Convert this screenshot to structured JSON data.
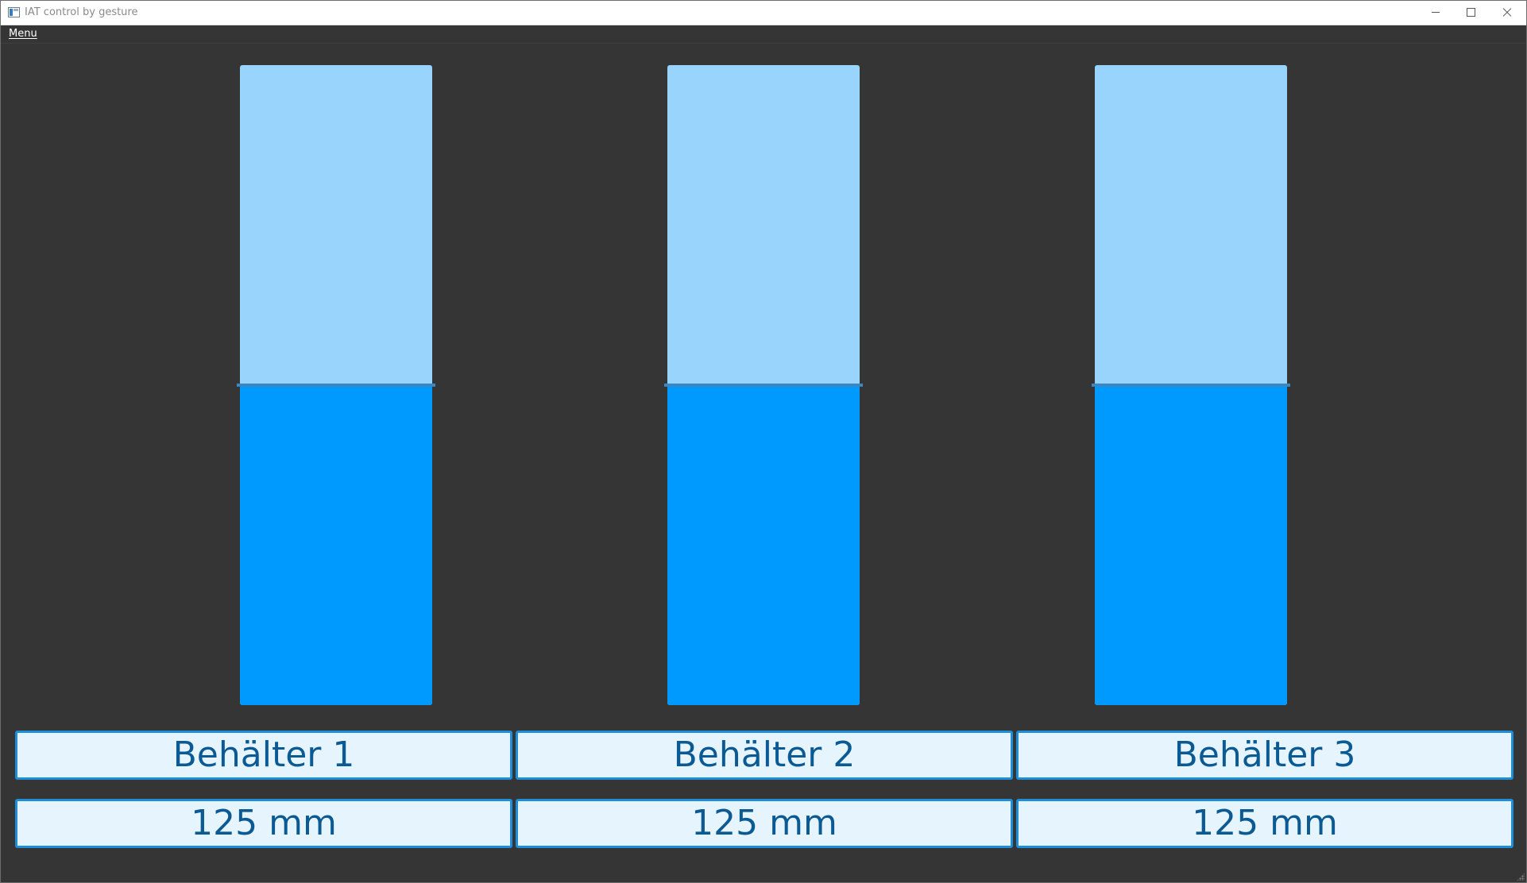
{
  "window": {
    "title": "IAT control by gesture"
  },
  "menubar": {
    "menu_label": "Menu"
  },
  "colors": {
    "background": "#353535",
    "tank_empty": "#99d4fd",
    "tank_fill": "#0099fe",
    "level_line": "#3d87c1",
    "label_background": "#e6f5fd",
    "label_border": "#1e8ed8",
    "label_text": "#0b5a93"
  },
  "tanks": [
    {
      "name": "Behälter 1",
      "level": "125 mm",
      "fill_fraction": 0.5
    },
    {
      "name": "Behälter 2",
      "level": "125 mm",
      "fill_fraction": 0.5
    },
    {
      "name": "Behälter 3",
      "level": "125 mm",
      "fill_fraction": 0.5
    }
  ]
}
